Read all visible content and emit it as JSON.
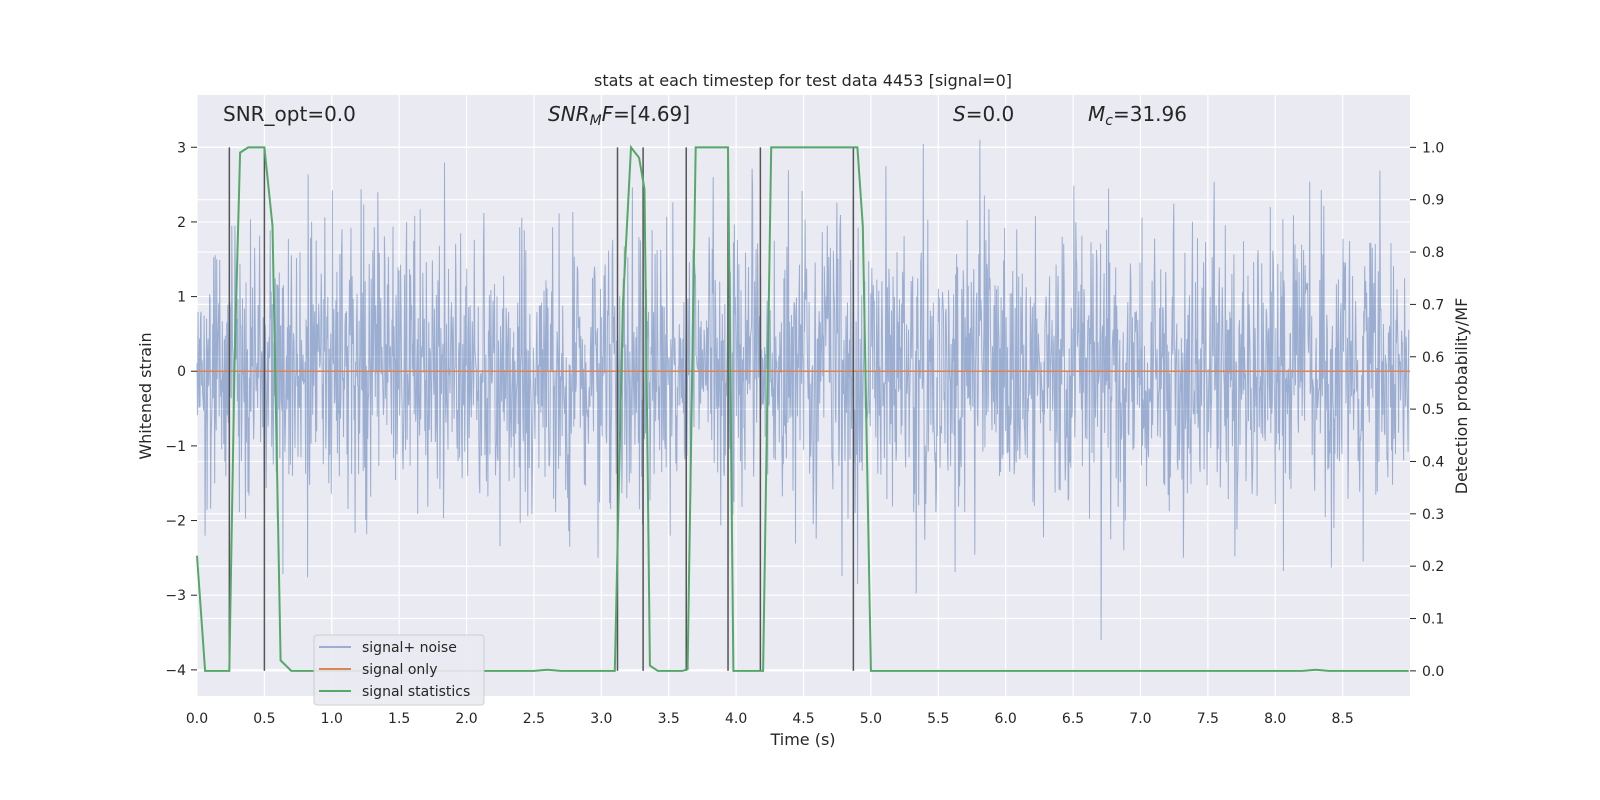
{
  "chart_data": {
    "type": "line",
    "title": "stats at each timestep for test data 4453 [signal=0]",
    "xlabel": "Time (s)",
    "ylabel_left": "Whitened strain",
    "ylabel_right": "Detection probability/MF",
    "xlim": [
      0.0,
      9.0
    ],
    "ylim_left": [
      -4.35,
      3.7
    ],
    "ylim_right": [
      -0.048,
      1.1
    ],
    "x_ticks": [
      0.0,
      0.5,
      1.0,
      1.5,
      2.0,
      2.5,
      3.0,
      3.5,
      4.0,
      4.5,
      5.0,
      5.5,
      6.0,
      6.5,
      7.0,
      7.5,
      8.0,
      8.5
    ],
    "x_tick_labels": [
      "0.0",
      "0.5",
      "1.0",
      "1.5",
      "2.0",
      "2.5",
      "3.0",
      "3.5",
      "4.0",
      "4.5",
      "5.0",
      "5.5",
      "6.0",
      "6.5",
      "7.0",
      "7.5",
      "8.0",
      "8.5"
    ],
    "y_left_ticks": [
      3,
      2,
      1,
      0,
      -1,
      -2,
      -3,
      -4
    ],
    "y_left_tick_labels": [
      "3",
      "2",
      "1",
      "0",
      "−1",
      "−2",
      "−3",
      "−4"
    ],
    "y_right_ticks": [
      1.0,
      0.9,
      0.8,
      0.7,
      0.6,
      0.5,
      0.4,
      0.3,
      0.2,
      0.1,
      0.0
    ],
    "y_right_tick_labels": [
      "1.0",
      "0.9",
      "0.8",
      "0.7",
      "0.6",
      "0.5",
      "0.4",
      "0.3",
      "0.2",
      "0.1",
      "0.0"
    ],
    "annotations": {
      "snr_opt": "SNR_opt=0.0",
      "snr_mf_main": "SNR",
      "snr_mf_sub": "M",
      "snr_mf_tail": "F",
      "snr_mf_value": "=[4.69]",
      "s_symbol": "S",
      "s_value": "=0.0",
      "mc_main": "M",
      "mc_sub": "c",
      "mc_value": "=31.96"
    },
    "legend": {
      "placement": "lower-left",
      "entries": [
        "signal+ noise",
        "signal only",
        "signal statistics"
      ]
    },
    "series": [
      {
        "name": "signal+ noise",
        "color": "#4c72b0",
        "kind": "noise",
        "envelope_std": 0.95,
        "y_range": [
          -3.6,
          3.1
        ]
      },
      {
        "name": "signal only",
        "color": "#dd8452",
        "kind": "constant",
        "value": 0
      },
      {
        "name": "signal statistics",
        "color": "#55a868",
        "kind": "line",
        "x": [
          0.0,
          0.06,
          0.24,
          0.28,
          0.32,
          0.38,
          0.44,
          0.5,
          0.56,
          0.62,
          0.7,
          2.5,
          2.6,
          2.7,
          2.8,
          3.1,
          3.16,
          3.22,
          3.28,
          3.32,
          3.36,
          3.42,
          3.48,
          3.6,
          3.64,
          3.7,
          3.94,
          3.98,
          4.2,
          4.26,
          4.9,
          4.94,
          5.0,
          8.2,
          8.3,
          8.4,
          8.5,
          8.99
        ],
        "y": [
          0.22,
          0.0,
          0.0,
          0.6,
          0.99,
          1.0,
          1.0,
          1.0,
          0.85,
          0.02,
          0.0,
          0.0,
          0.002,
          0.0,
          0.0,
          0.0,
          0.7,
          1.0,
          0.98,
          0.92,
          0.01,
          0.0,
          0.0,
          0.0,
          0.003,
          1.0,
          1.0,
          0.0,
          0.0,
          1.0,
          1.0,
          0.85,
          0.0,
          0.0,
          0.002,
          0.0,
          0.0,
          0.0
        ]
      },
      {
        "name": "detection markers",
        "color": "#555555",
        "kind": "vlines",
        "x": [
          0.24,
          0.5,
          3.12,
          3.31,
          3.63,
          3.94,
          4.18,
          4.87
        ]
      }
    ]
  }
}
